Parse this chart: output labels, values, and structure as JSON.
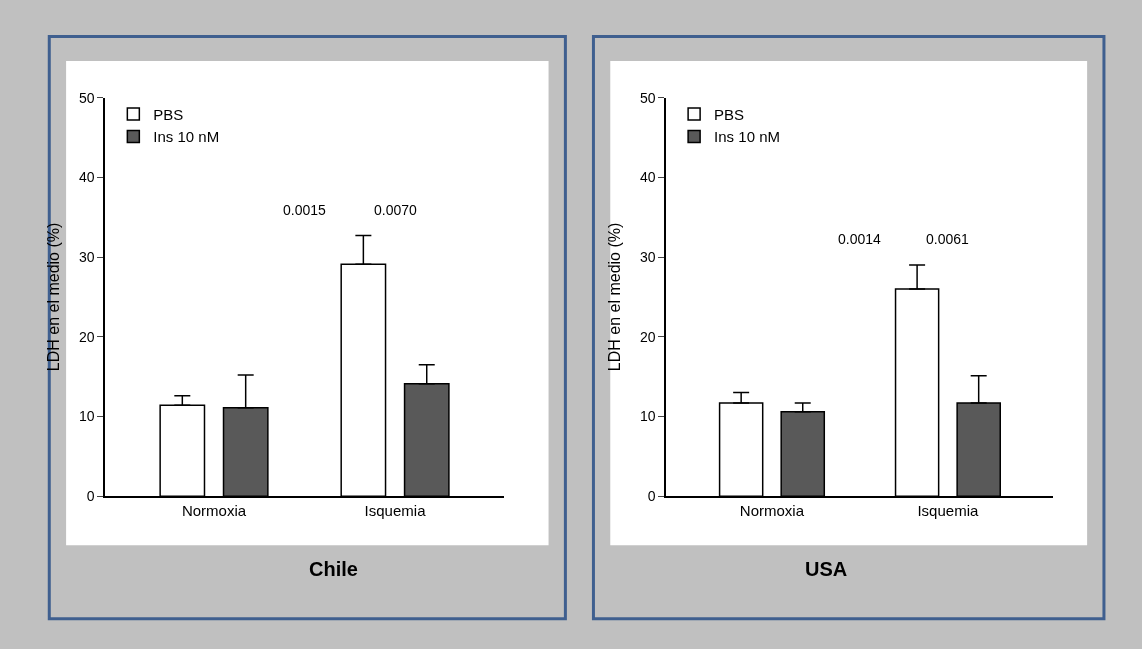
{
  "chart_data": [
    {
      "type": "bar",
      "title": "Chile",
      "ylabel": "LDH en el medio (%)",
      "categories": [
        "Normoxia",
        "Isquemia"
      ],
      "series": [
        {
          "name": "PBS",
          "color": "#ffffff",
          "values": [
            11.4,
            29.1
          ],
          "errors": [
            [
              11.4,
              12.6
            ],
            [
              29.1,
              32.7
            ]
          ]
        },
        {
          "name": "Ins 10 nM",
          "color": "#595959",
          "values": [
            11.1,
            14.1
          ],
          "errors": [
            [
              11.1,
              15.2
            ],
            [
              14.1,
              16.5
            ]
          ]
        }
      ],
      "ylim": [
        0,
        50
      ],
      "yticks": [
        0,
        10,
        20,
        30,
        40,
        50
      ],
      "legend": "top left",
      "annotations": [
        "0.0015",
        "0.0070"
      ]
    },
    {
      "type": "bar",
      "title": "USA",
      "ylabel": "LDH en el medio (%)",
      "categories": [
        "Normoxia",
        "Isquemia"
      ],
      "series": [
        {
          "name": "PBS",
          "color": "#ffffff",
          "values": [
            11.7,
            26.0
          ],
          "errors": [
            [
              11.7,
              13.0
            ],
            [
              26.0,
              29.0
            ]
          ]
        },
        {
          "name": "Ins 10 nM",
          "color": "#595959",
          "values": [
            10.6,
            11.7
          ],
          "errors": [
            [
              10.6,
              11.7
            ],
            [
              11.7,
              15.1
            ]
          ]
        }
      ],
      "ylim": [
        0,
        50
      ],
      "yticks": [
        0,
        10,
        20,
        30,
        40,
        50
      ],
      "legend": "top left",
      "annotations": [
        "0.0014",
        "0.0061"
      ]
    }
  ]
}
